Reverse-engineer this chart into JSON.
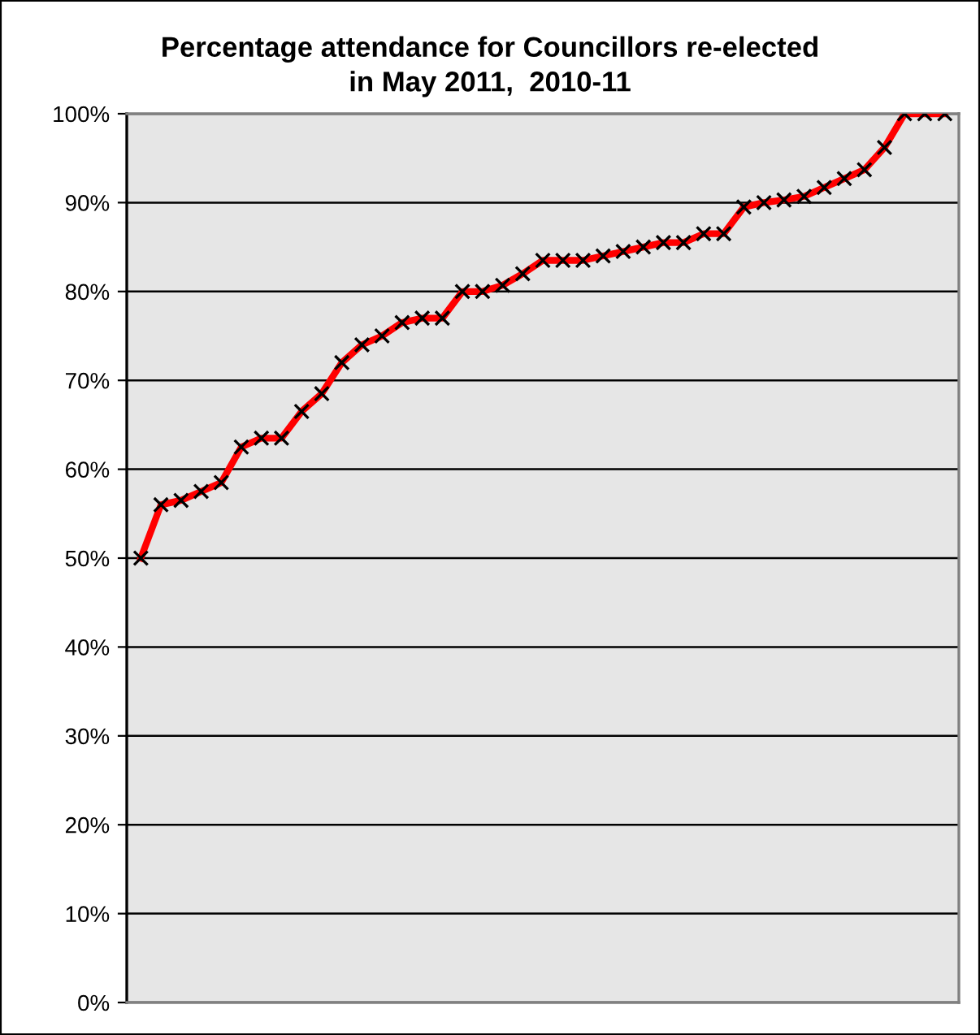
{
  "chart_data": {
    "type": "line",
    "title": "Percentage attendance for Councillors re-elected\nin May 2011,  2010-11",
    "categories": [
      null,
      null,
      null,
      null,
      null,
      null,
      null,
      null,
      null,
      null,
      null,
      null,
      null,
      null,
      null,
      null,
      null,
      null,
      null,
      null,
      null,
      null,
      null,
      null,
      null,
      null,
      null,
      null,
      null,
      null,
      null,
      null,
      null,
      null,
      null,
      null,
      null,
      null,
      null,
      null,
      null
    ],
    "series": [
      {
        "color": "#ff0000",
        "values": [
          50,
          56,
          56.5,
          57.5,
          58.5,
          62.5,
          63.5,
          63.5,
          66.5,
          68.5,
          72,
          74,
          75,
          76.5,
          77,
          77,
          80,
          80,
          80.7,
          82,
          83.5,
          83.5,
          83.5,
          84,
          84.5,
          85,
          85.5,
          85.5,
          86.5,
          86.5,
          89.5,
          90,
          90.3,
          90.7,
          91.7,
          92.7,
          93.7,
          96.2,
          100,
          100,
          100
        ]
      }
    ],
    "ylim": [
      0,
      100
    ],
    "yticks": [
      {
        "value": 0,
        "label": "0%"
      },
      {
        "value": 10,
        "label": "10%"
      },
      {
        "value": 20,
        "label": "20%"
      },
      {
        "value": 30,
        "label": "30%"
      },
      {
        "value": 40,
        "label": "40%"
      },
      {
        "value": 50,
        "label": "50%"
      },
      {
        "value": 60,
        "label": "60%"
      },
      {
        "value": 70,
        "label": "70%"
      },
      {
        "value": 80,
        "label": "80%"
      },
      {
        "value": 90,
        "label": "90%"
      },
      {
        "value": 100,
        "label": "100%"
      }
    ],
    "grid": "y",
    "marker": "cross",
    "line_style": "solid"
  }
}
